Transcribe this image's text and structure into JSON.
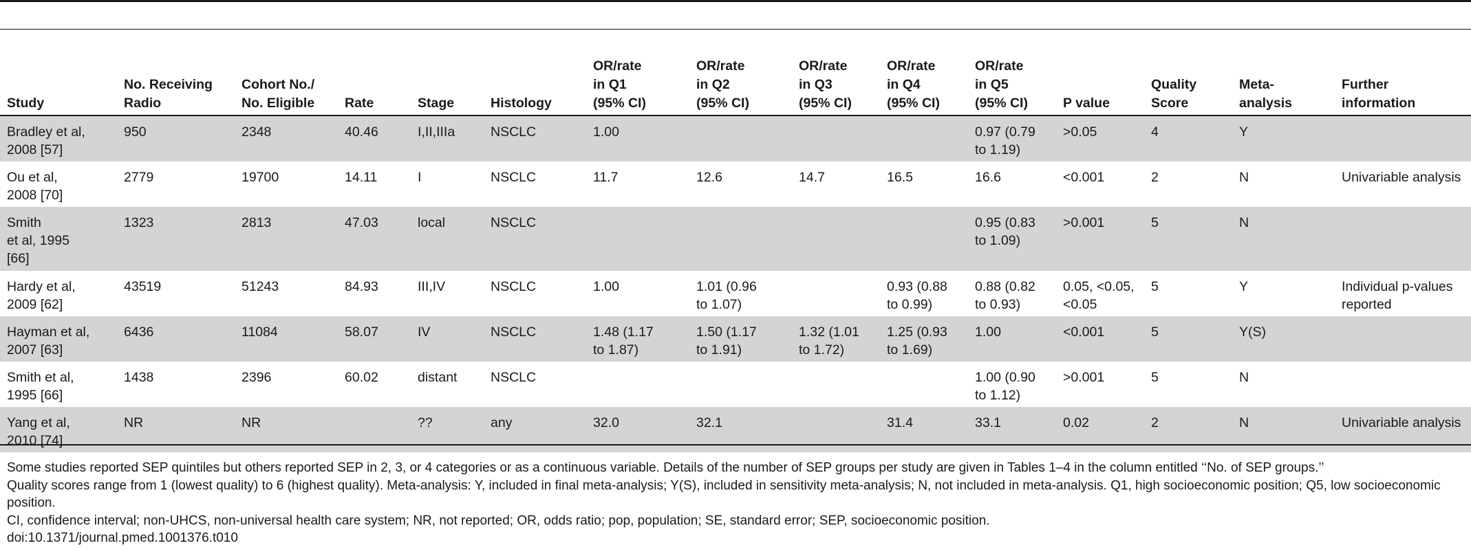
{
  "table": {
    "headers": [
      "Study",
      "No. Receiving\nRadio",
      "Cohort No./\nNo. Eligible",
      "Rate",
      "Stage",
      "Histology",
      "OR/rate\nin Q1\n(95% CI)",
      "OR/rate\nin Q2\n(95% CI)",
      "OR/rate\nin Q3\n(95% CI)",
      "OR/rate\nin Q4\n(95% CI)",
      "OR/rate\nin Q5\n(95% CI)",
      "P value",
      "Quality\nScore",
      "Meta-\nanalysis",
      "Further\ninformation"
    ],
    "rows": [
      [
        "Bradley et al,\n2008 [57]",
        "950",
        "2348",
        "40.46",
        "I,II,IIIa",
        "NSCLC",
        "1.00",
        "",
        "",
        "",
        "0.97 (0.79\nto 1.19)",
        ">0.05",
        "4",
        "Y",
        ""
      ],
      [
        "Ou et al,\n2008 [70]",
        "2779",
        "19700",
        "14.11",
        "I",
        "NSCLC",
        "11.7",
        "12.6",
        "14.7",
        "16.5",
        "16.6",
        "<0.001",
        "2",
        "N",
        "Univariable analysis"
      ],
      [
        "Smith\net al, 1995\n[66]",
        "1323",
        "2813",
        "47.03",
        "local",
        "NSCLC",
        "",
        "",
        "",
        "",
        "0.95 (0.83\nto 1.09)",
        ">0.001",
        "5",
        "N",
        ""
      ],
      [
        "Hardy et al,\n2009 [62]",
        "43519",
        "51243",
        "84.93",
        "III,IV",
        "NSCLC",
        "1.00",
        "1.01 (0.96\nto 1.07)",
        "",
        "0.93 (0.88\nto 0.99)",
        "0.88 (0.82\nto 0.93)",
        "0.05, <0.05,\n<0.05",
        "5",
        "Y",
        "Individual p-values\nreported"
      ],
      [
        "Hayman et al,\n2007 [63]",
        "6436",
        "11084",
        "58.07",
        "IV",
        "NSCLC",
        "1.48 (1.17\nto 1.87)",
        "1.50 (1.17\nto 1.91)",
        "1.32 (1.01\nto 1.72)",
        "1.25 (0.93\nto 1.69)",
        "1.00",
        "<0.001",
        "5",
        "Y(S)",
        ""
      ],
      [
        "Smith et al,\n1995 [66]",
        "1438",
        "2396",
        "60.02",
        "distant",
        "NSCLC",
        "",
        "",
        "",
        "",
        "1.00 (0.90\nto 1.12)",
        ">0.001",
        "5",
        "N",
        ""
      ],
      [
        "Yang et al,\n2010 [74]",
        "NR",
        "NR",
        "",
        "??",
        "any",
        "32.0",
        "32.1",
        "",
        "31.4",
        "33.1",
        "0.02",
        "2",
        "N",
        "Univariable analysis"
      ]
    ]
  },
  "footnotes": [
    "Some studies reported SEP quintiles but others reported SEP in 2, 3, or 4 categories or as a continuous variable. Details of the number of SEP groups per study are given in Tables 1–4 in the column entitled ‘‘No. of SEP groups.’’",
    "Quality scores range from 1 (lowest quality) to 6 (highest quality). Meta-analysis: Y, included in final meta-analysis; Y(S), included in sensitivity meta-analysis; N, not included in meta-analysis. Q1, high socioeconomic position; Q5, low socioeconomic position.",
    "CI, confidence interval; non-UHCS, non-universal health care system; NR, not reported; OR, odds ratio; pop, population; SE, standard error; SEP, socioeconomic position.",
    "doi:10.1371/journal.pmed.1001376.t010"
  ]
}
